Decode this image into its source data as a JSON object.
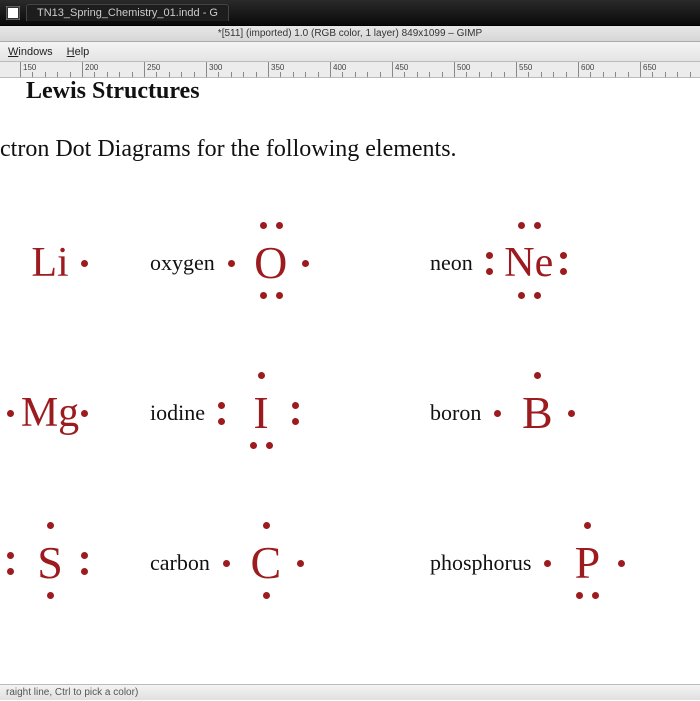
{
  "window": {
    "titlebar_tab": "TN13_Spring_Chemistry_01.indd - G",
    "gimp_title": "*[511] (imported) 1.0 (RGB color, 1 layer) 849x1099 – GIMP",
    "menu_windows": "Windows",
    "menu_help": "Help",
    "statusbar": "raight line, Ctrl to pick a color)"
  },
  "ruler": {
    "start": 150,
    "step": 50,
    "count": 11
  },
  "content": {
    "title": "Lewis Structures",
    "subtitle": "ctron Dot Diagrams for the following elements.",
    "marker_color": "#9c1b1f",
    "rows": [
      {
        "col1": {
          "symbol": "Li",
          "dots": [
            [
              "R",
              0
            ]
          ]
        },
        "col2": {
          "label": "oxygen",
          "symbol": "O",
          "dots": [
            [
              "T",
              -1
            ],
            [
              "T",
              1
            ],
            [
              "L",
              0
            ],
            [
              "R",
              0
            ],
            [
              "B",
              -1
            ],
            [
              "B",
              1
            ]
          ]
        },
        "col3": {
          "label": "neon",
          "symbol": "Ne",
          "dots": [
            [
              "T",
              -1
            ],
            [
              "T",
              1
            ],
            [
              "L",
              -1
            ],
            [
              "L",
              1
            ],
            [
              "R",
              -1
            ],
            [
              "R",
              1
            ],
            [
              "B",
              -1
            ],
            [
              "B",
              1
            ]
          ]
        }
      },
      {
        "col1": {
          "symbol": "Mg",
          "dots": [
            [
              "L",
              0
            ],
            [
              "R",
              0
            ]
          ]
        },
        "col2": {
          "label": "iodine",
          "symbol": "I",
          "dots": [
            [
              "T",
              0
            ],
            [
              "L",
              -1
            ],
            [
              "L",
              1
            ],
            [
              "R",
              -1
            ],
            [
              "R",
              1
            ],
            [
              "B",
              -1
            ],
            [
              "B",
              1
            ]
          ]
        },
        "col3": {
          "label": "boron",
          "symbol": "B",
          "dots": [
            [
              "T",
              0
            ],
            [
              "L",
              0
            ],
            [
              "R",
              0
            ]
          ]
        }
      },
      {
        "col1": {
          "symbol": "S",
          "dots": [
            [
              "T",
              0
            ],
            [
              "L",
              -1
            ],
            [
              "L",
              1
            ],
            [
              "R",
              -1
            ],
            [
              "R",
              1
            ],
            [
              "B",
              0
            ]
          ]
        },
        "col2": {
          "label": "carbon",
          "symbol": "C",
          "dots": [
            [
              "T",
              0
            ],
            [
              "L",
              0
            ],
            [
              "R",
              0
            ],
            [
              "B",
              0
            ]
          ]
        },
        "col3": {
          "label": "phosphorus",
          "symbol": "P",
          "dots": [
            [
              "T",
              0
            ],
            [
              "L",
              0
            ],
            [
              "R",
              0
            ],
            [
              "B",
              -1
            ],
            [
              "B",
              1
            ]
          ]
        }
      }
    ]
  }
}
